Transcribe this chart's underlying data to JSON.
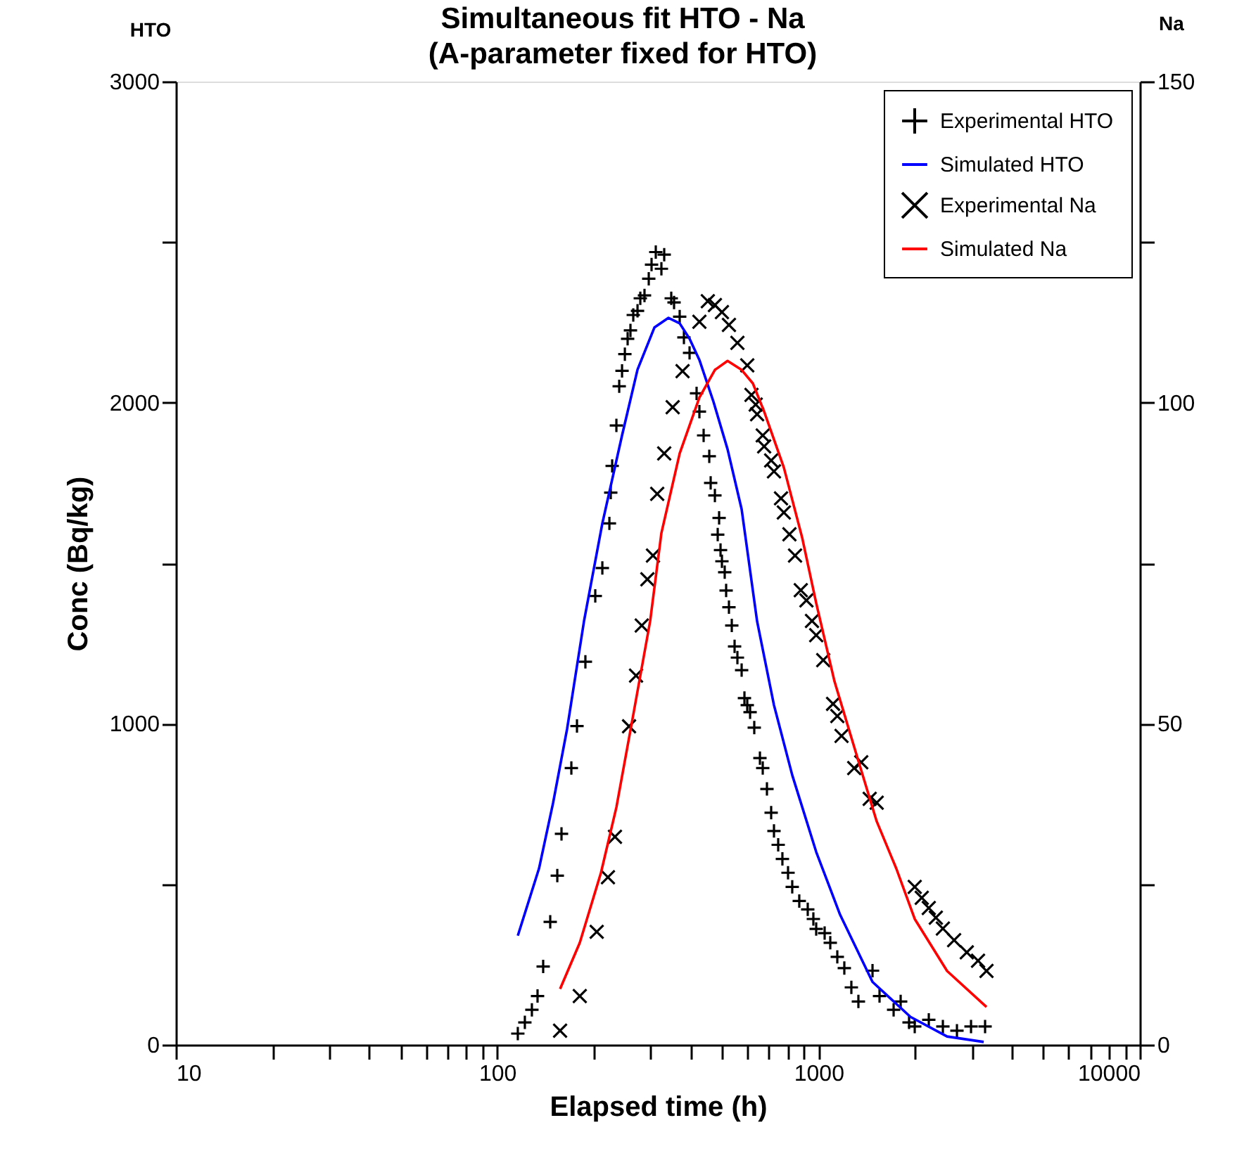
{
  "chart_data": {
    "type": "scatter",
    "title": "Simultaneous fit HTO - Na\n(A-parameter fixed for HTO)",
    "xlabel": "Elapsed time (h)",
    "ylabel": "Conc (Bq/kg)",
    "y2label": "Na",
    "annotations": [
      "HTO"
    ],
    "log": "x",
    "grid": false,
    "legend": "top right",
    "xlim": [
      10,
      10000
    ],
    "xticks": [
      10,
      {
        "value": 20,
        "label": null
      },
      {
        "value": 30,
        "label": null
      },
      {
        "value": 40,
        "label": null
      },
      {
        "value": 50,
        "label": null
      },
      {
        "value": 60,
        "label": null
      },
      {
        "value": 70,
        "label": null
      },
      {
        "value": 80,
        "label": null
      },
      {
        "value": 90,
        "label": null
      },
      100,
      {
        "value": 200,
        "label": null
      },
      {
        "value": 300,
        "label": null
      },
      {
        "value": 400,
        "label": null
      },
      {
        "value": 500,
        "label": null
      },
      {
        "value": 600,
        "label": null
      },
      {
        "value": 700,
        "label": null
      },
      {
        "value": 800,
        "label": null
      },
      {
        "value": 900,
        "label": null
      },
      1000,
      {
        "value": 2000,
        "label": null
      },
      {
        "value": 3000,
        "label": null
      },
      {
        "value": 4000,
        "label": null
      },
      {
        "value": 5000,
        "label": null
      },
      {
        "value": 6000,
        "label": null
      },
      {
        "value": 7000,
        "label": null
      },
      {
        "value": 8000,
        "label": null
      },
      {
        "value": 9000,
        "label": null
      },
      10000
    ],
    "ylim": [
      0,
      3000
    ],
    "yticks": [
      0,
      {
        "value": 500,
        "label": null
      },
      1000,
      {
        "value": 1500,
        "label": null
      },
      2000,
      {
        "value": 2500,
        "label": null
      },
      3000
    ],
    "y2lim": [
      0,
      150
    ],
    "y2ticks": [
      0,
      {
        "value": 25,
        "label": null
      },
      50,
      {
        "value": 75,
        "label": null
      },
      100,
      {
        "value": 125,
        "label": null
      },
      150
    ],
    "series": [
      {
        "name": "Experimental HTO",
        "marker": "plus",
        "color": "#000000",
        "x": [
          115.9,
          121.9,
          128.2,
          133.5,
          139.0,
          146.2,
          153.8,
          158.5,
          170.1,
          177.1,
          188.1,
          201.9,
          212.4,
          223.4,
          225.6,
          227.9,
          234.9,
          239.7,
          244.6,
          249.6,
          254.6,
          259.8,
          265.1,
          273.3,
          278.8,
          287.3,
          296.2,
          302.2,
          311.5,
          324.3,
          330.9,
          348.0,
          355.1,
          369.7,
          381.1,
          396.8,
          417.3,
          425.8,
          438.9,
          457.0,
          461.6,
          475.8,
          490.4,
          485.5,
          495.4,
          500.4,
          510.5,
          515.7,
          526.2,
          537.0,
          547.9,
          559.1,
          576.3,
          588.0,
          600.0,
          612.3,
          630.9,
          657.0,
          670.4,
          690.9,
          712.1,
          726.6,
          748.9,
          771.8,
          803.6,
          828.2,
          871.0,
          925.5,
          963.6,
          983.3,
          1044.7,
          1087.7,
          1143.9,
          1202.9,
          1265.1,
          1330.6,
          1472.2,
          1548.1,
          1712.6,
          1801.1,
          1913.0,
          1992.3,
          2203.5,
          2437.4,
          2696.1,
          2982.4,
          3298.4
        ],
        "values": [
          35,
          70,
          109,
          152,
          244,
          383,
          527,
          657,
          862,
          993,
          1193,
          1398,
          1485,
          1624,
          1720,
          1803,
          1929,
          2051,
          2099,
          2151,
          2199,
          2225,
          2273,
          2286,
          2325,
          2334,
          2386,
          2430,
          2469,
          2417,
          2461,
          2325,
          2312,
          2268,
          2203,
          2155,
          2029,
          1972,
          1898,
          1833,
          1750,
          1711,
          1641,
          1589,
          1541,
          1506,
          1472,
          1415,
          1363,
          1306,
          1241,
          1206,
          1167,
          1080,
          1058,
          1036,
          988,
          893,
          862,
          797,
          723,
          666,
          623,
          579,
          536,
          492,
          448,
          422,
          392,
          361,
          348,
          318,
          274,
          239,
          179,
          135,
          231,
          152,
          109,
          135,
          70,
          57,
          78,
          57,
          44,
          57,
          57
        ]
      },
      {
        "name": "Simulated HTO",
        "type": "line",
        "color": "#0000ff",
        "x": [
          115.9,
          134.9,
          149.2,
          165.0,
          186.2,
          212.4,
          244.6,
          273.3,
          308.4,
          341.2,
          369.7,
          396.8,
          425.8,
          470.9,
          521.0,
          576.3,
          643.9,
          726.6,
          828.2,
          983.3,
          1167.3,
          1472.2,
          1932.6,
          2512.4,
          3265.9
        ],
        "values": [
          340,
          549,
          753,
          984,
          1319,
          1624,
          1898,
          2103,
          2234,
          2264,
          2247,
          2199,
          2133,
          2003,
          1855,
          1668,
          1319,
          1058,
          840,
          601,
          405,
          196,
          87,
          26,
          9
        ]
      },
      {
        "name": "Experimental Na",
        "marker": "cross",
        "color": "#000000",
        "axis": "y2",
        "x": [
          156.9,
          180.7,
          204.0,
          221.1,
          232.5,
          257.2,
          270.4,
          281.7,
          293.3,
          305.3,
          314.7,
          330.9,
          351.6,
          377.4,
          425.8,
          452.3,
          475.8,
          500.4,
          526.2,
          559.1,
          600.0,
          618.4,
          637.4,
          643.9,
          670.4,
          677.2,
          712.1,
          726.6,
          764.1,
          779.8,
          811.7,
          845.0,
          880.5,
          916.8,
          954.1,
          983.3,
          1034.2,
          1109.7,
          1143.9,
          1179.1,
          1291.2,
          1358.0,
          1442.8,
          1517.0,
          1992.3,
          2095.2,
          2203.5,
          2317.4,
          2437.4,
          2642.2,
          2893.3,
          3136.0,
          3332.0
        ],
        "values": [
          2.2,
          7.6,
          17.6,
          26.1,
          32.4,
          49.6,
          57.5,
          65.3,
          72.5,
          76.2,
          85.8,
          92.1,
          99.3,
          104.9,
          112.6,
          115.8,
          115.2,
          114.1,
          112.1,
          109.3,
          105.8,
          101.2,
          99.7,
          98.2,
          94.9,
          93.2,
          91.0,
          89.3,
          85.1,
          82.9,
          79.5,
          76.2,
          70.8,
          69.2,
          66.0,
          63.8,
          59.9,
          53.1,
          51.2,
          48.1,
          43.1,
          44.0,
          38.3,
          37.7,
          24.6,
          22.9,
          21.3,
          19.8,
          18.1,
          16.3,
          14.4,
          13.1,
          11.5
        ]
      },
      {
        "name": "Simulated Na",
        "type": "line",
        "color": "#ff0000",
        "axis": "y2",
        "x": [
          156.9,
          180.7,
          210.3,
          234.9,
          265.1,
          299.2,
          324.3,
          369.7,
          425.8,
          475.8,
          521.0,
          576.3,
          624.6,
          677.2,
          779.8,
          889.0,
          983.3,
          1121.0,
          1330.6,
          1517.0,
          1747.4,
          1992.3,
          2512.4,
          3332.0
        ],
        "values": [
          8.7,
          15.9,
          26.8,
          37.0,
          51.4,
          66.0,
          79.7,
          92.1,
          100.8,
          105.1,
          106.5,
          105.1,
          103.0,
          98.6,
          89.9,
          79.0,
          68.8,
          56.6,
          44.2,
          34.8,
          27.4,
          19.6,
          11.5,
          5.9
        ]
      }
    ]
  }
}
